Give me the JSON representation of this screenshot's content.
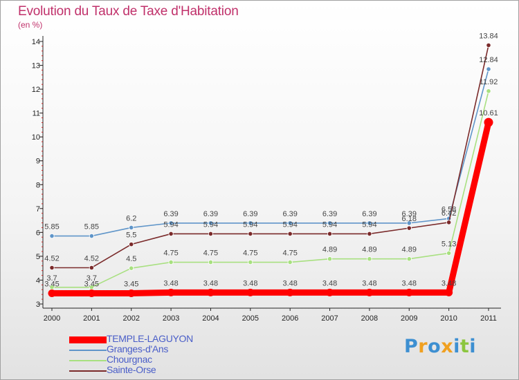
{
  "header": {
    "title": "Evolution du Taux de Taxe d'Habitation",
    "subtitle": "(en %)"
  },
  "brand": {
    "name": "Proxiti",
    "letters": [
      {
        "ch": "P",
        "color": "#3d8fd1"
      },
      {
        "ch": "r",
        "color": "#f0a020"
      },
      {
        "ch": "o",
        "color": "#3d8fd1"
      },
      {
        "ch": "x",
        "color": "#f0a020"
      },
      {
        "ch": "i",
        "color": "#3d8fd1"
      },
      {
        "ch": "t",
        "color": "#8cc63f"
      },
      {
        "ch": "i",
        "color": "#3d8fd1"
      }
    ]
  },
  "chart_data": {
    "type": "line",
    "title": "Evolution du Taux de Taxe d'Habitation",
    "ylabel": "(en %)",
    "xlabel": "",
    "x": [
      "2000",
      "2001",
      "2002",
      "2003",
      "2004",
      "2005",
      "2006",
      "2007",
      "2008",
      "2009",
      "2010",
      "2011"
    ],
    "ylim": [
      3,
      14
    ],
    "yticks": [
      3,
      4,
      5,
      6,
      7,
      8,
      9,
      10,
      11,
      12,
      13,
      14
    ],
    "grid": false,
    "legend_position": "bottom-left",
    "series": [
      {
        "name": "TEMPLE-LAGUYON",
        "color": "#ff0000",
        "values": [
          3.45,
          3.45,
          3.45,
          3.48,
          3.48,
          3.48,
          3.48,
          3.48,
          3.48,
          3.48,
          3.48,
          10.61
        ],
        "labels": [
          "3.45",
          "3.45",
          "3.45",
          "3.48",
          "3.48",
          "3.48",
          "3.48",
          "3.48",
          "3.48",
          "3.48",
          "3.48",
          "10.61"
        ]
      },
      {
        "name": "Granges-d'Ans",
        "color": "#5f95c9",
        "values": [
          5.85,
          5.85,
          6.2,
          6.39,
          6.39,
          6.39,
          6.39,
          6.39,
          6.39,
          6.39,
          6.58,
          12.84
        ],
        "labels": [
          "5.85",
          "5.85",
          "6.2",
          "6.39",
          "6.39",
          "6.39",
          "6.39",
          "6.39",
          "6.39",
          "6.39",
          "6.58",
          "12.84"
        ]
      },
      {
        "name": "Chourgnac",
        "color": "#a8e080",
        "values": [
          3.7,
          3.7,
          4.5,
          4.75,
          4.75,
          4.75,
          4.75,
          4.89,
          4.89,
          4.89,
          5.13,
          11.92
        ],
        "labels": [
          "3.7",
          "3.7",
          "4.5",
          "4.75",
          "4.75",
          "4.75",
          "4.75",
          "4.89",
          "4.89",
          "4.89",
          "5.13",
          "11.92"
        ]
      },
      {
        "name": "Sainte-Orse",
        "color": "#7a2a2a",
        "values": [
          4.52,
          4.52,
          5.5,
          5.94,
          5.94,
          5.94,
          5.94,
          5.94,
          5.94,
          6.18,
          6.42,
          13.84
        ],
        "labels": [
          "4.52",
          "4.52",
          "5.5",
          "5.94",
          "5.94",
          "5.94",
          "5.94",
          "5.94",
          "5.94",
          "6.18",
          "6.42",
          "13.84"
        ]
      }
    ]
  }
}
